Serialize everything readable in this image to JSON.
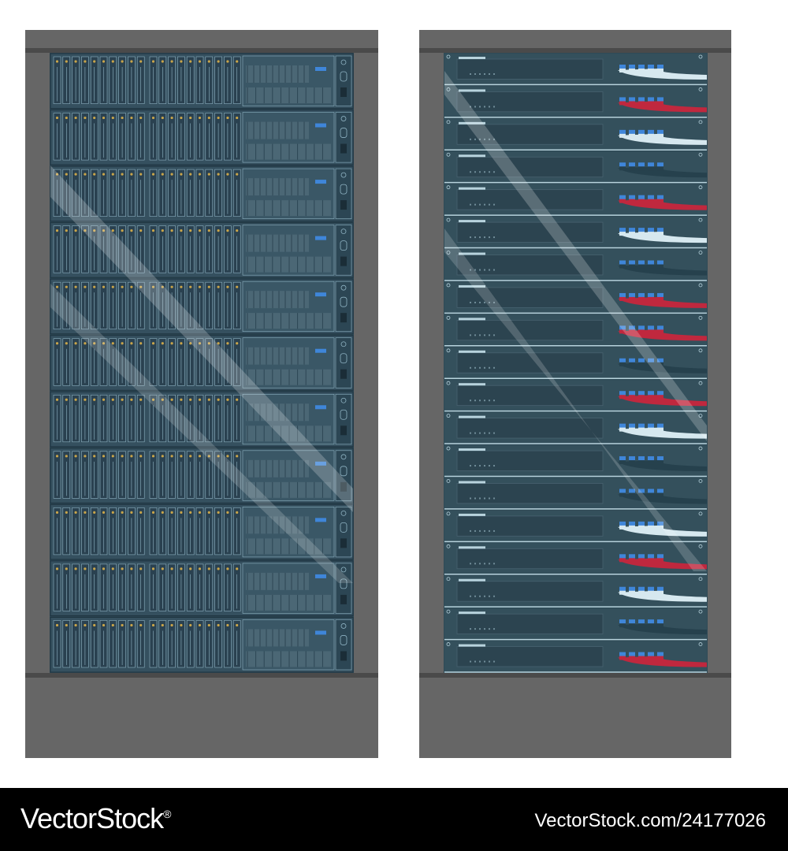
{
  "colors": {
    "background": "#ffffff",
    "cabinet": "#666666",
    "cabinet_band": "#4a4a4a",
    "storage_panel": "#35505f",
    "storage_line": "#8fb3c3",
    "storage_accent": "#c9a54a",
    "network_panel": "#34505c",
    "network_line": "#b8d3dd",
    "cable_white": "#d6e8ef",
    "cable_red": "#c0283e",
    "cable_dark": "#26414d",
    "port_blue": "#3f86d9",
    "glare": "#ffffff",
    "footer_bg": "#000000",
    "footer_text": "#ffffff"
  },
  "left_rack": {
    "name": "storage-server-rack",
    "unit_count": 11
  },
  "right_rack": {
    "name": "network-switch-rack",
    "unit_count": 19,
    "cable_colors": [
      "white",
      "red",
      "white",
      "dark",
      "red",
      "white",
      "dark",
      "red",
      "red",
      "dark",
      "red",
      "white",
      "dark",
      "dark",
      "white",
      "red",
      "white",
      "dark",
      "red"
    ]
  },
  "footer": {
    "brand": "VectorStock",
    "registered": "®",
    "stock_id": "VectorStock.com/24177026"
  }
}
